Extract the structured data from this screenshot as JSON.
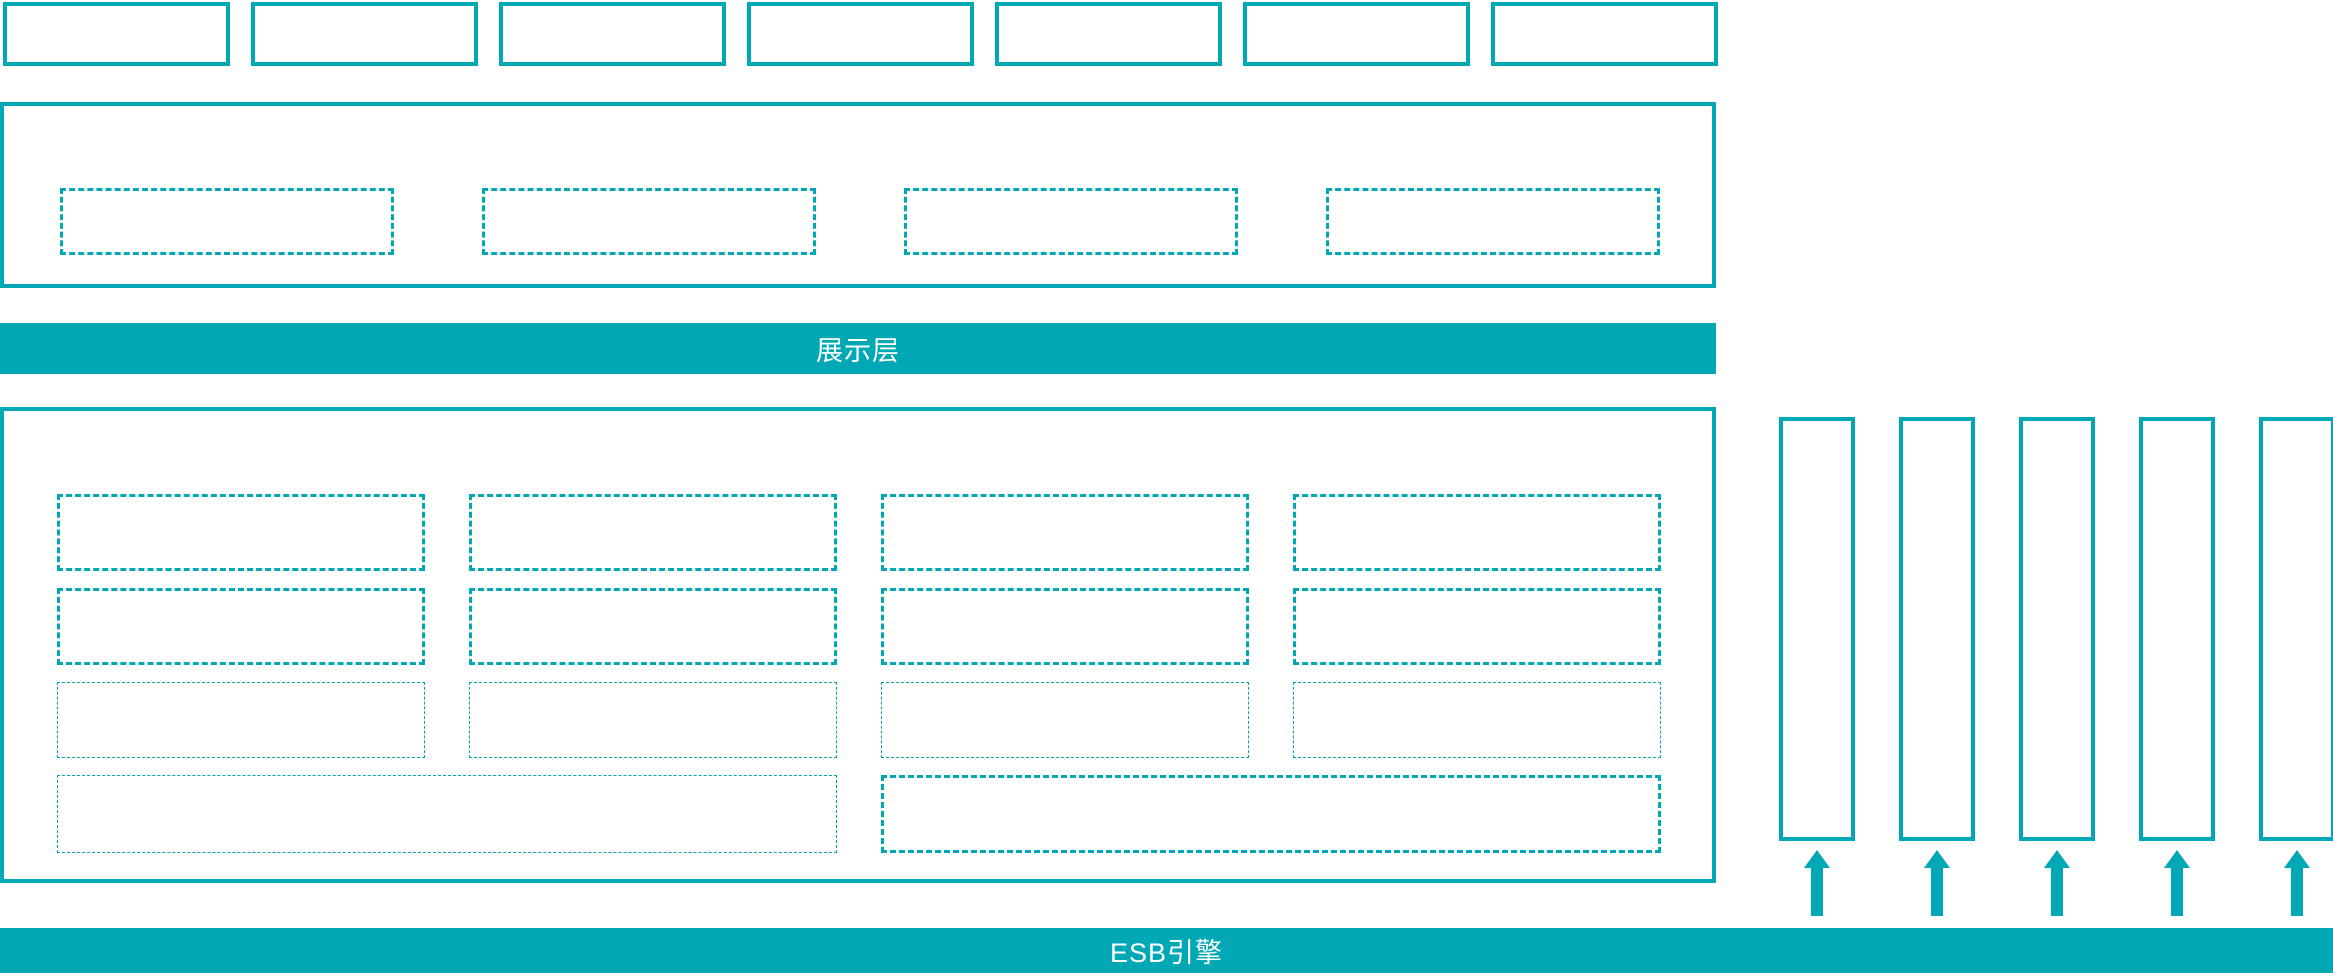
{
  "colors": {
    "accent": "#00A8B6",
    "text_on_accent": "#FFFFFF",
    "background": "#FFFFFF"
  },
  "banners": {
    "presentation_layer_label": "展示层",
    "esb_engine_label": "ESB引擎"
  },
  "top_row": {
    "empty_box_count": 7
  },
  "presentation_group": {
    "empty_dashed_box_count": 4
  },
  "service_group": {
    "grid_columns": 4,
    "bold_dashed_rows": 2,
    "thin_dashed_rows": 1,
    "wide_bottom_boxes": [
      {
        "style": "thin"
      },
      {
        "style": "bold"
      }
    ]
  },
  "right_channels": {
    "count": 5,
    "arrow_direction": "up"
  }
}
